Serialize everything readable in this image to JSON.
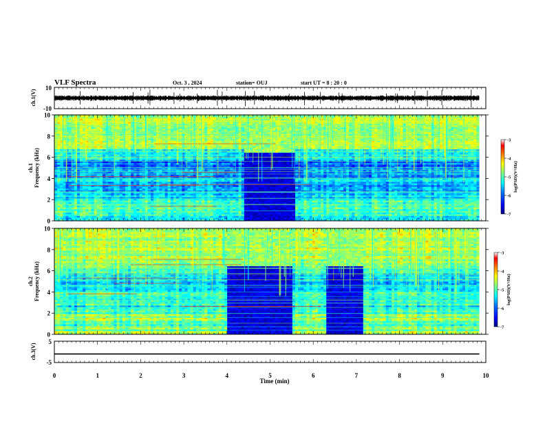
{
  "header": {
    "title": "VLF Spectra",
    "date": "Oct. 3 , 2024",
    "station": "station= OUJ",
    "start": "start  UT =   8 : 20 : 0"
  },
  "colors": {
    "colormap": [
      "#00007f",
      "#0000ff",
      "#0080ff",
      "#00ffff",
      "#80ff80",
      "#ffff00",
      "#ff8000",
      "#ff0000",
      "#ffffff"
    ]
  },
  "chart_data": [
    {
      "type": "line",
      "ylabel": "ch.1(V)",
      "ylim": [
        -10,
        10
      ],
      "y_tick_labels": [
        "10",
        "-10"
      ],
      "baseline": 0,
      "grid": false
    },
    {
      "type": "heatmap",
      "ylabel": "Frequency (kHz)",
      "channel_label": "ch.1",
      "ylim": [
        0,
        10
      ],
      "y_tick_labels": [
        "0",
        "2",
        "4",
        "6",
        "8",
        "10"
      ],
      "colorbar": {
        "label": "log(PSD)(V²/Hz)",
        "range": [
          -7,
          -3
        ],
        "tick_labels": [
          "-3",
          "-4",
          "-5",
          "-6",
          "-7"
        ]
      },
      "dark_bands_min": [
        [
          4.4,
          5.6
        ]
      ]
    },
    {
      "type": "heatmap",
      "ylabel": "Frequency (kHz)",
      "channel_label": "ch.2",
      "ylim": [
        0,
        10
      ],
      "y_tick_labels": [
        "0",
        "2",
        "4",
        "6",
        "8",
        "10"
      ],
      "colorbar": {
        "label": "log(PSD)(V²/Hz)",
        "range": [
          -7,
          -3
        ],
        "tick_labels": [
          "-3",
          "-4",
          "-5",
          "-6",
          "-7"
        ]
      },
      "dark_bands_min": [
        [
          4.0,
          5.5
        ],
        [
          6.3,
          7.15
        ]
      ]
    },
    {
      "type": "line",
      "ylabel": "ch.3(V)",
      "ylim": [
        -5,
        5
      ],
      "y_tick_labels": [
        "5",
        "-5"
      ],
      "baseline": -1,
      "grid": false
    }
  ],
  "x_axis": {
    "label": "Time (min)",
    "range": [
      0,
      10
    ],
    "data_end": 9.85,
    "tick_labels": [
      "0",
      "1",
      "2",
      "3",
      "4",
      "5",
      "6",
      "7",
      "8",
      "9",
      "10"
    ]
  }
}
